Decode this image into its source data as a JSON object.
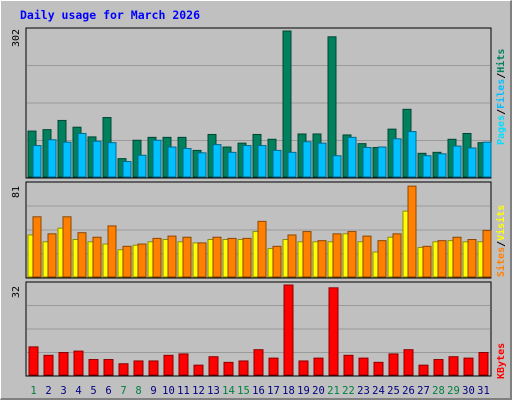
{
  "title": "Daily usage for March 2026",
  "days": [
    "1",
    "2",
    "3",
    "4",
    "5",
    "6",
    "7",
    "8",
    "9",
    "10",
    "11",
    "12",
    "13",
    "14",
    "15",
    "16",
    "17",
    "18",
    "19",
    "20",
    "21",
    "22",
    "23",
    "24",
    "25",
    "26",
    "27",
    "28",
    "29",
    "30",
    "31"
  ],
  "weekend_days": [
    "1",
    "7",
    "8",
    "14",
    "15",
    "21",
    "22",
    "28",
    "29"
  ],
  "colors": {
    "hits": "#00805c",
    "files": "#00c0ff",
    "pages": "#00e0ff",
    "visits": "#ffff00",
    "sites": "#ff8000",
    "kbytes": "#ff0000",
    "weekday": "#000080",
    "weekend": "#008040"
  },
  "legend": {
    "pages": "Pages",
    "files": "Files",
    "hits": "Hits",
    "sep": "/",
    "sites": "Sites",
    "visits": "Visits",
    "kbytes": "KBytes"
  },
  "chart_data": [
    {
      "type": "bar",
      "panel": "hits_files_pages",
      "y_max_label": "302",
      "ylim": [
        0,
        302
      ],
      "categories": [
        "1",
        "2",
        "3",
        "4",
        "5",
        "6",
        "7",
        "8",
        "9",
        "10",
        "11",
        "12",
        "13",
        "14",
        "15",
        "16",
        "17",
        "18",
        "19",
        "20",
        "21",
        "22",
        "23",
        "24",
        "25",
        "26",
        "27",
        "28",
        "29",
        "30",
        "31"
      ],
      "series": [
        {
          "name": "Hits",
          "values": [
            95,
            98,
            117,
            103,
            83,
            123,
            38,
            76,
            82,
            82,
            82,
            55,
            88,
            62,
            70,
            88,
            78,
            302,
            89,
            89,
            290,
            87,
            69,
            61,
            99,
            140,
            49,
            51,
            78,
            90,
            71
          ]
        },
        {
          "name": "Files",
          "values": [
            65,
            77,
            72,
            90,
            74,
            71,
            32,
            45,
            76,
            62,
            59,
            50,
            67,
            51,
            65,
            65,
            55,
            51,
            73,
            70,
            44,
            82,
            61,
            62,
            79,
            94,
            44,
            48,
            64,
            60,
            72
          ]
        },
        {
          "name": "Pages",
          "values": [
            65,
            77,
            72,
            90,
            74,
            71,
            32,
            45,
            76,
            62,
            59,
            50,
            67,
            51,
            65,
            65,
            55,
            51,
            73,
            70,
            44,
            82,
            61,
            62,
            79,
            94,
            44,
            48,
            64,
            60,
            72
          ]
        }
      ]
    },
    {
      "type": "bar",
      "panel": "visits_sites",
      "y_max_label": "81",
      "ylim": [
        0,
        81
      ],
      "categories": [
        "1",
        "2",
        "3",
        "4",
        "5",
        "6",
        "7",
        "8",
        "9",
        "10",
        "11",
        "12",
        "13",
        "14",
        "15",
        "16",
        "17",
        "18",
        "19",
        "20",
        "21",
        "22",
        "23",
        "24",
        "25",
        "26",
        "27",
        "28",
        "29",
        "30",
        "31"
      ],
      "series": [
        {
          "name": "Visits",
          "values": [
            37,
            31,
            43,
            33,
            31,
            29,
            24,
            28,
            31,
            33,
            31,
            30,
            33,
            33,
            33,
            40,
            25,
            33,
            31,
            31,
            31,
            38,
            31,
            22,
            35,
            58,
            26,
            31,
            32,
            31,
            31
          ]
        },
        {
          "name": "Sites",
          "values": [
            53,
            38,
            53,
            39,
            35,
            45,
            27,
            29,
            34,
            36,
            35,
            30,
            35,
            34,
            34,
            49,
            27,
            37,
            40,
            32,
            38,
            40,
            36,
            32,
            38,
            80,
            27,
            32,
            35,
            33,
            41
          ]
        }
      ]
    },
    {
      "type": "bar",
      "panel": "kbytes",
      "y_max_label": "32",
      "ylim": [
        0,
        32
      ],
      "categories": [
        "1",
        "2",
        "3",
        "4",
        "5",
        "6",
        "7",
        "8",
        "9",
        "10",
        "11",
        "12",
        "13",
        "14",
        "15",
        "16",
        "17",
        "18",
        "19",
        "20",
        "21",
        "22",
        "23",
        "24",
        "25",
        "26",
        "27",
        "28",
        "29",
        "30",
        "31"
      ],
      "series": [
        {
          "name": "KBytes",
          "values": [
            10,
            7,
            8,
            8.5,
            5.5,
            5.5,
            4,
            5,
            5,
            7,
            7.5,
            3.5,
            6.5,
            4.5,
            5,
            9,
            6,
            32,
            5,
            6,
            31,
            7,
            6,
            4.5,
            7.5,
            9,
            3.5,
            5.5,
            6.5,
            6,
            8
          ]
        }
      ]
    }
  ]
}
